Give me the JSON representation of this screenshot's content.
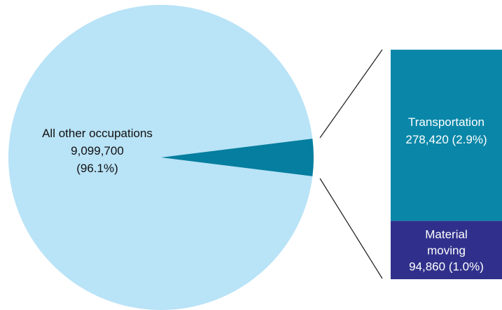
{
  "chart_data": {
    "type": "pie",
    "subtype": "bar-of-pie",
    "slices": [
      {
        "label": "All other occupations",
        "value": 9099700,
        "value_label": "9,099,700",
        "percent_label": "(96.1%)",
        "color": "#b9e3f7"
      },
      {
        "label": "Transportation and material moving",
        "value": 373280,
        "color": "#057e9f",
        "breakdown": [
          {
            "label": "Transportation",
            "value": 278420,
            "value_label": "278,420 (2.9%)",
            "color": "#0a87a8"
          },
          {
            "label_lines": [
              "Material",
              "moving"
            ],
            "value": 94860,
            "value_label": "94,860 (1.0%)",
            "color": "#30308c"
          }
        ]
      }
    ],
    "legend": "none",
    "grid": false
  }
}
